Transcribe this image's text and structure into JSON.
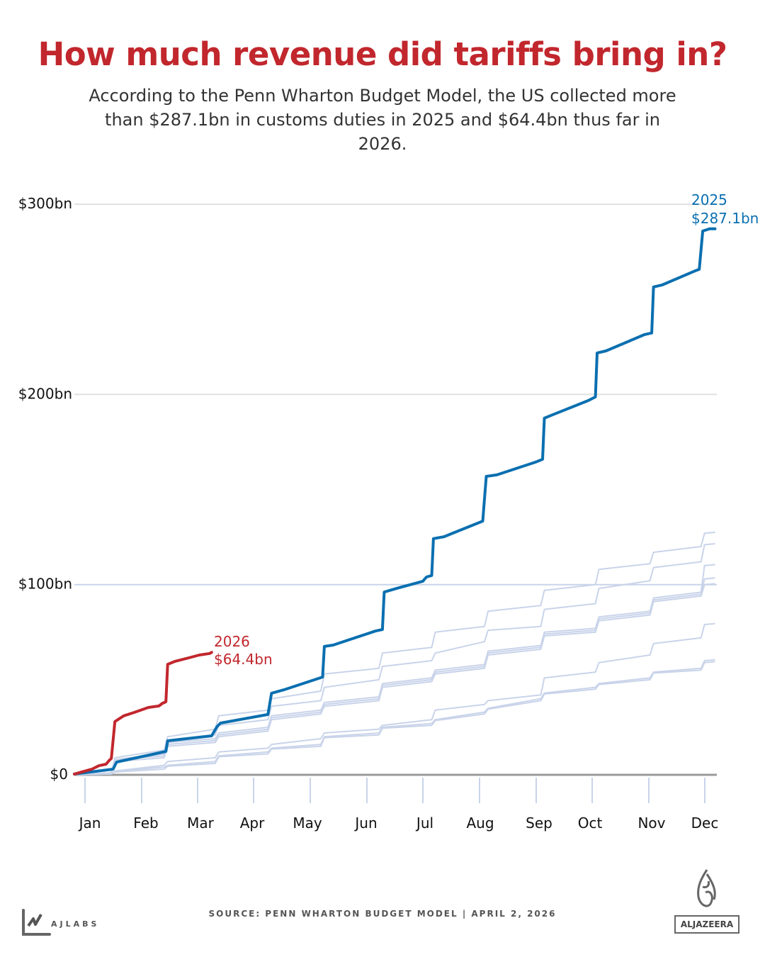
{
  "title": "How much revenue did tariffs bring in?",
  "subtitle": "According to the Penn Wharton Budget Model, the US collected more than $287.1bn in customs duties in 2025 and $64.4bn thus far in 2026.",
  "footer": {
    "source": "SOURCE:  PENN WHARTON BUDGET MODEL |   APRIL 2, 2026",
    "left_logo": "AJLABS",
    "right_logo": "ALJAZEERA"
  },
  "chart_data": {
    "type": "line",
    "title": "How much revenue did tariffs bring in?",
    "xlabel": "",
    "ylabel": "",
    "ylim": [
      0,
      300
    ],
    "y_ticks": [
      {
        "value": 0,
        "label": "$0"
      },
      {
        "value": 100,
        "label": "$100bn"
      },
      {
        "value": 200,
        "label": "$200bn"
      },
      {
        "value": 300,
        "label": "$300bn"
      }
    ],
    "x_ticks": [
      "Jan",
      "Feb",
      "Mar",
      "Apr",
      "May",
      "Jun",
      "Jul",
      "Aug",
      "Sep",
      "Oct",
      "Nov",
      "Dec"
    ],
    "grid": true,
    "colors": {
      "highlight_2025": "#0a6fb0",
      "highlight_2026": "#c1272d",
      "other_years": "#c9d4ea",
      "baseline": "#9a9a9a",
      "grid": "#e0e0e0"
    },
    "series": [
      {
        "name": "2025",
        "label_value": "$287.1bn",
        "color": "#0a6fb0",
        "points": [
          [
            "01-01",
            0.4
          ],
          [
            "01-23",
            3.0
          ],
          [
            "01-25",
            6.7
          ],
          [
            "02-22",
            12.3
          ],
          [
            "02-23",
            17.9
          ],
          [
            "03-20",
            20.5
          ],
          [
            "03-23",
            25.3
          ],
          [
            "03-25",
            27.2
          ],
          [
            "04-21",
            31.7
          ],
          [
            "04-23",
            42.9
          ],
          [
            "04-30",
            44.7
          ],
          [
            "05-22",
            51.4
          ],
          [
            "05-23",
            67.5
          ],
          [
            "05-28",
            68.2
          ],
          [
            "06-21",
            75.6
          ],
          [
            "06-25",
            76.4
          ],
          [
            "06-26",
            96.1
          ],
          [
            "07-03",
            98.0
          ],
          [
            "07-18",
            101.8
          ],
          [
            "07-20",
            104.0
          ],
          [
            "07-23",
            104.8
          ],
          [
            "07-24",
            124.2
          ],
          [
            "07-30",
            125.2
          ],
          [
            "08-21",
            133.4
          ],
          [
            "08-23",
            156.9
          ],
          [
            "08-29",
            157.7
          ],
          [
            "09-20",
            164.4
          ],
          [
            "09-24",
            165.9
          ],
          [
            "09-25",
            187.5
          ],
          [
            "09-30",
            189.4
          ],
          [
            "10-20",
            196.8
          ],
          [
            "10-24",
            198.7
          ],
          [
            "10-25",
            221.8
          ],
          [
            "10-30",
            222.9
          ],
          [
            "11-21",
            231.5
          ],
          [
            "11-25",
            232.3
          ],
          [
            "11-26",
            256.5
          ],
          [
            "12-01",
            257.6
          ],
          [
            "12-19",
            264.7
          ],
          [
            "12-22",
            265.8
          ],
          [
            "12-24",
            285.9
          ],
          [
            "12-28",
            287.1
          ],
          [
            "12-31",
            287.1
          ]
        ]
      },
      {
        "name": "2026",
        "label_value": "$64.4bn",
        "color": "#c1272d",
        "points": [
          [
            "01-01",
            0.4
          ],
          [
            "01-11",
            3.0
          ],
          [
            "01-15",
            4.8
          ],
          [
            "01-19",
            5.6
          ],
          [
            "01-21",
            7.8
          ],
          [
            "01-22",
            8.6
          ],
          [
            "01-24",
            28.0
          ],
          [
            "01-29",
            31.0
          ],
          [
            "02-04",
            32.8
          ],
          [
            "02-12",
            35.4
          ],
          [
            "02-18",
            36.2
          ],
          [
            "02-20",
            37.6
          ],
          [
            "02-22",
            38.4
          ],
          [
            "02-23",
            58.1
          ],
          [
            "02-27",
            59.6
          ],
          [
            "03-07",
            61.5
          ],
          [
            "03-13",
            63.0
          ],
          [
            "03-19",
            63.8
          ],
          [
            "03-20",
            64.4
          ]
        ]
      }
    ],
    "other_years": {
      "color": "#c9d4ea",
      "jump_dates": [
        "01-23",
        "02-22",
        "03-23",
        "04-22",
        "05-22",
        "06-24",
        "07-24",
        "08-23",
        "09-24",
        "10-25",
        "11-25",
        "12-24"
      ],
      "series_before_after_jump": [
        [
          [
            1,
            9
          ],
          [
            13,
            20
          ],
          [
            24,
            31
          ],
          [
            34,
            40
          ],
          [
            44,
            53
          ],
          [
            56,
            64
          ],
          [
            67,
            75
          ],
          [
            78,
            86
          ],
          [
            89,
            97
          ],
          [
            100,
            108
          ],
          [
            111,
            117
          ],
          [
            120,
            127
          ]
        ],
        [
          [
            1,
            8
          ],
          [
            11,
            18
          ],
          [
            21,
            26
          ],
          [
            29,
            36
          ],
          [
            39,
            46
          ],
          [
            50,
            57
          ],
          [
            60,
            64
          ],
          [
            70,
            76
          ],
          [
            78,
            87
          ],
          [
            90,
            98
          ],
          [
            102,
            109
          ],
          [
            112,
            121
          ]
        ],
        [
          [
            1,
            8
          ],
          [
            11,
            17
          ],
          [
            19,
            22
          ],
          [
            25,
            31
          ],
          [
            34,
            38
          ],
          [
            41,
            48
          ],
          [
            51,
            55
          ],
          [
            58,
            65
          ],
          [
            68,
            75
          ],
          [
            77,
            83
          ],
          [
            86,
            93
          ],
          [
            96,
            110
          ]
        ],
        [
          [
            1,
            8
          ],
          [
            10,
            16
          ],
          [
            18,
            21
          ],
          [
            24,
            30
          ],
          [
            33,
            37
          ],
          [
            40,
            47
          ],
          [
            50,
            54
          ],
          [
            57,
            64
          ],
          [
            67,
            74
          ],
          [
            76,
            82
          ],
          [
            85,
            92
          ],
          [
            95,
            103
          ]
        ],
        [
          [
            1,
            7
          ],
          [
            9,
            15
          ],
          [
            17,
            20
          ],
          [
            23,
            29
          ],
          [
            32,
            36
          ],
          [
            39,
            46
          ],
          [
            49,
            53
          ],
          [
            56,
            63
          ],
          [
            66,
            73
          ],
          [
            75,
            81
          ],
          [
            84,
            91
          ],
          [
            94,
            100
          ]
        ],
        [
          [
            0.5,
            2
          ],
          [
            5,
            7
          ],
          [
            9,
            12
          ],
          [
            14,
            16
          ],
          [
            19,
            22
          ],
          [
            24,
            26
          ],
          [
            29,
            34
          ],
          [
            37,
            39
          ],
          [
            42,
            51
          ],
          [
            54,
            59
          ],
          [
            63,
            69
          ],
          [
            72,
            79
          ]
        ],
        [
          [
            0.5,
            2
          ],
          [
            4,
            5
          ],
          [
            7,
            10
          ],
          [
            12,
            14
          ],
          [
            16,
            20
          ],
          [
            22,
            25
          ],
          [
            27,
            29
          ],
          [
            33,
            35
          ],
          [
            40,
            43
          ],
          [
            46,
            48
          ],
          [
            51,
            54
          ],
          [
            56,
            60
          ]
        ],
        [
          [
            0.5,
            1.5
          ],
          [
            3,
            4.5
          ],
          [
            6,
            9.5
          ],
          [
            11,
            13.5
          ],
          [
            15,
            19.5
          ],
          [
            21,
            24.5
          ],
          [
            26,
            28.5
          ],
          [
            32,
            34.5
          ],
          [
            39,
            42.5
          ],
          [
            45,
            47.5
          ],
          [
            50,
            53.5
          ],
          [
            55,
            59
          ]
        ]
      ]
    }
  }
}
